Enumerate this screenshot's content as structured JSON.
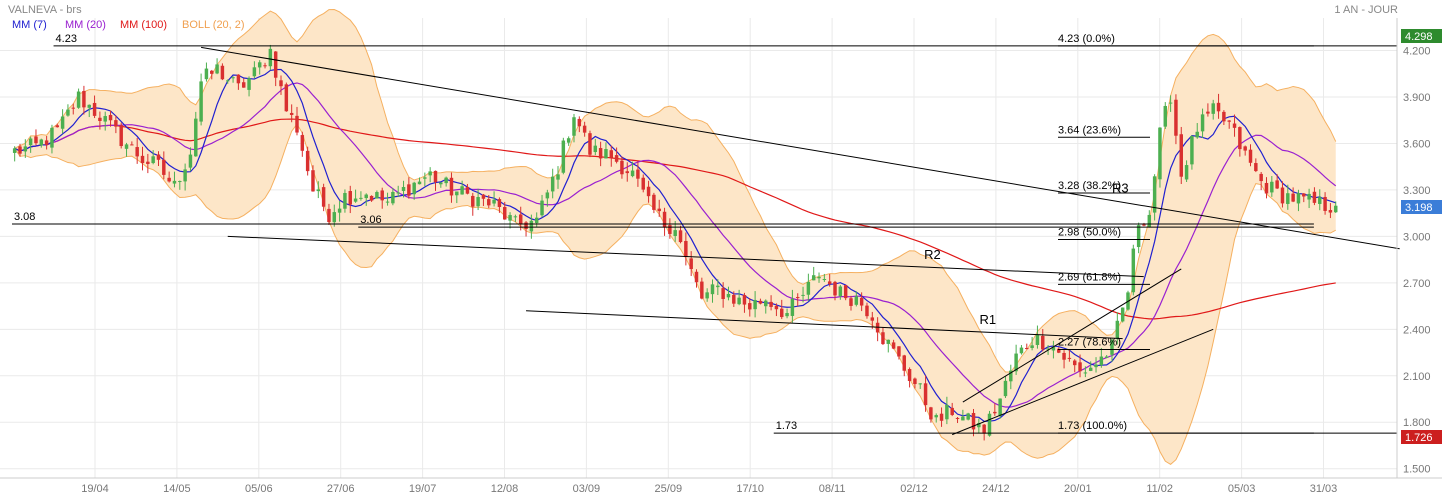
{
  "header": {
    "title": "VALNEVA - brs",
    "period": "1 AN - JOUR"
  },
  "legend": [
    {
      "label": "MM (7)",
      "color": "#2020d0"
    },
    {
      "label": "MM (20)",
      "color": "#9a20d0"
    },
    {
      "label": "MM (100)",
      "color": "#e01818"
    },
    {
      "label": "BOLL (20, 2)",
      "color": "#f0a050"
    }
  ],
  "colors": {
    "up_candle": "#4caf50",
    "down_candle": "#d93030",
    "boll_fill": "#fde6c8",
    "boll_line": "#f5b060",
    "grid": "#eaeaea",
    "trend_line": "#000000",
    "last_price_badge": "#3b7dd8",
    "high_badge": "#2e8b2e",
    "low_badge": "#cc1f1f"
  },
  "badges": {
    "high": "4.298",
    "last": "3.198",
    "low": "1.726"
  },
  "chart_data": {
    "type": "candlestick",
    "x_tick_labels": [
      "19/04",
      "14/05",
      "05/06",
      "27/06",
      "19/07",
      "12/08",
      "03/09",
      "25/09",
      "17/10",
      "08/11",
      "02/12",
      "24/12",
      "20/01",
      "11/02",
      "05/03",
      "31/03"
    ],
    "y_tick_labels": [
      "4.200",
      "3.900",
      "3.600",
      "3.300",
      "3.000",
      "2.700",
      "2.400",
      "2.100",
      "1.800",
      "1.500"
    ],
    "ylim": [
      1.44,
      4.41
    ],
    "grid": true,
    "price_control_points": [
      [
        0,
        3.55
      ],
      [
        4,
        3.58
      ],
      [
        8,
        3.68
      ],
      [
        12,
        3.9
      ],
      [
        16,
        3.78
      ],
      [
        20,
        3.63
      ],
      [
        24,
        3.5
      ],
      [
        27,
        3.45
      ],
      [
        30,
        3.32
      ],
      [
        33,
        3.55
      ],
      [
        35,
        4.0
      ],
      [
        38,
        4.08
      ],
      [
        42,
        3.95
      ],
      [
        45,
        4.05
      ],
      [
        48,
        4.2
      ],
      [
        51,
        3.82
      ],
      [
        53,
        3.7
      ],
      [
        56,
        3.3
      ],
      [
        59,
        3.15
      ],
      [
        62,
        3.26
      ],
      [
        66,
        3.28
      ],
      [
        70,
        3.22
      ],
      [
        74,
        3.32
      ],
      [
        78,
        3.4
      ],
      [
        82,
        3.3
      ],
      [
        86,
        3.25
      ],
      [
        90,
        3.2
      ],
      [
        94,
        3.07
      ],
      [
        98,
        3.1
      ],
      [
        102,
        3.45
      ],
      [
        105,
        3.8
      ],
      [
        108,
        3.55
      ],
      [
        112,
        3.52
      ],
      [
        116,
        3.4
      ],
      [
        119,
        3.2
      ],
      [
        122,
        3.08
      ],
      [
        124,
        3.07
      ],
      [
        126,
        2.85
      ],
      [
        129,
        2.6
      ],
      [
        132,
        2.66
      ],
      [
        135,
        2.6
      ],
      [
        138,
        2.55
      ],
      [
        141,
        2.6
      ],
      [
        145,
        2.5
      ],
      [
        148,
        2.62
      ],
      [
        151,
        2.76
      ],
      [
        155,
        2.63
      ],
      [
        158,
        2.6
      ],
      [
        161,
        2.5
      ],
      [
        163,
        2.35
      ],
      [
        166,
        2.2
      ],
      [
        170,
        2.0
      ],
      [
        173,
        1.8
      ],
      [
        176,
        1.88
      ],
      [
        179,
        1.8
      ],
      [
        182,
        1.75
      ],
      [
        185,
        1.95
      ],
      [
        188,
        2.22
      ],
      [
        191,
        2.34
      ],
      [
        194,
        2.32
      ],
      [
        197,
        2.22
      ],
      [
        200,
        2.12
      ],
      [
        203,
        2.18
      ],
      [
        206,
        2.28
      ],
      [
        209,
        2.65
      ],
      [
        211,
        3.1
      ],
      [
        213,
        3.15
      ],
      [
        215,
        3.65
      ],
      [
        217,
        3.92
      ],
      [
        219,
        3.4
      ],
      [
        222,
        3.7
      ],
      [
        225,
        3.8
      ],
      [
        228,
        3.72
      ],
      [
        231,
        3.52
      ],
      [
        234,
        3.35
      ],
      [
        237,
        3.28
      ],
      [
        240,
        3.25
      ],
      [
        243,
        3.22
      ],
      [
        246,
        3.2
      ],
      [
        248,
        3.198
      ]
    ],
    "moving_averages": [
      {
        "name": "MM (7)",
        "period": 7
      },
      {
        "name": "MM (20)",
        "period": 20
      },
      {
        "name": "MM (100)",
        "period": 100
      }
    ],
    "bollinger": {
      "name": "BOLL (20, 2)",
      "period": 20,
      "std": 2
    },
    "horizontal_levels": [
      {
        "value": 4.23,
        "label": "4.23",
        "x_from": 0.03,
        "x_to": 0.94
      },
      {
        "value": 3.08,
        "label": "3.08",
        "x_from": 0.0,
        "x_to": 0.94
      },
      {
        "value": 3.06,
        "label": "3.06",
        "x_from": 0.25,
        "x_to": 0.94
      },
      {
        "value": 1.73,
        "label": "1.73",
        "x_from": 0.55,
        "x_to": 0.94
      }
    ],
    "fibonacci": [
      {
        "label": "4.23  (0.0%)",
        "value": 4.23
      },
      {
        "label": "3.64  (23.6%)",
        "value": 3.64
      },
      {
        "label": "3.28  (38.2%)",
        "value": 3.28
      },
      {
        "label": "2.98  (50.0%)",
        "value": 2.98
      },
      {
        "label": "2.69  (61.8%)",
        "value": 2.69
      },
      {
        "label": "2.27  (78.6%)",
        "value": 2.27
      },
      {
        "label": "1.73  (100.0%)",
        "value": 1.73
      }
    ],
    "trend_lines": [
      {
        "label": "R3",
        "from": [
          35,
          4.22
        ],
        "to": [
          260,
          2.92
        ]
      },
      {
        "label": "R2",
        "from": [
          40,
          3.0
        ],
        "to": [
          212,
          2.74
        ]
      },
      {
        "label": "R1",
        "from": [
          96,
          2.52
        ],
        "to": [
          208,
          2.34
        ]
      },
      {
        "label": "",
        "from": [
          176,
          1.72
        ],
        "to": [
          225,
          2.4
        ]
      },
      {
        "label": "",
        "from": [
          178,
          1.93
        ],
        "to": [
          219,
          2.79
        ]
      }
    ]
  }
}
